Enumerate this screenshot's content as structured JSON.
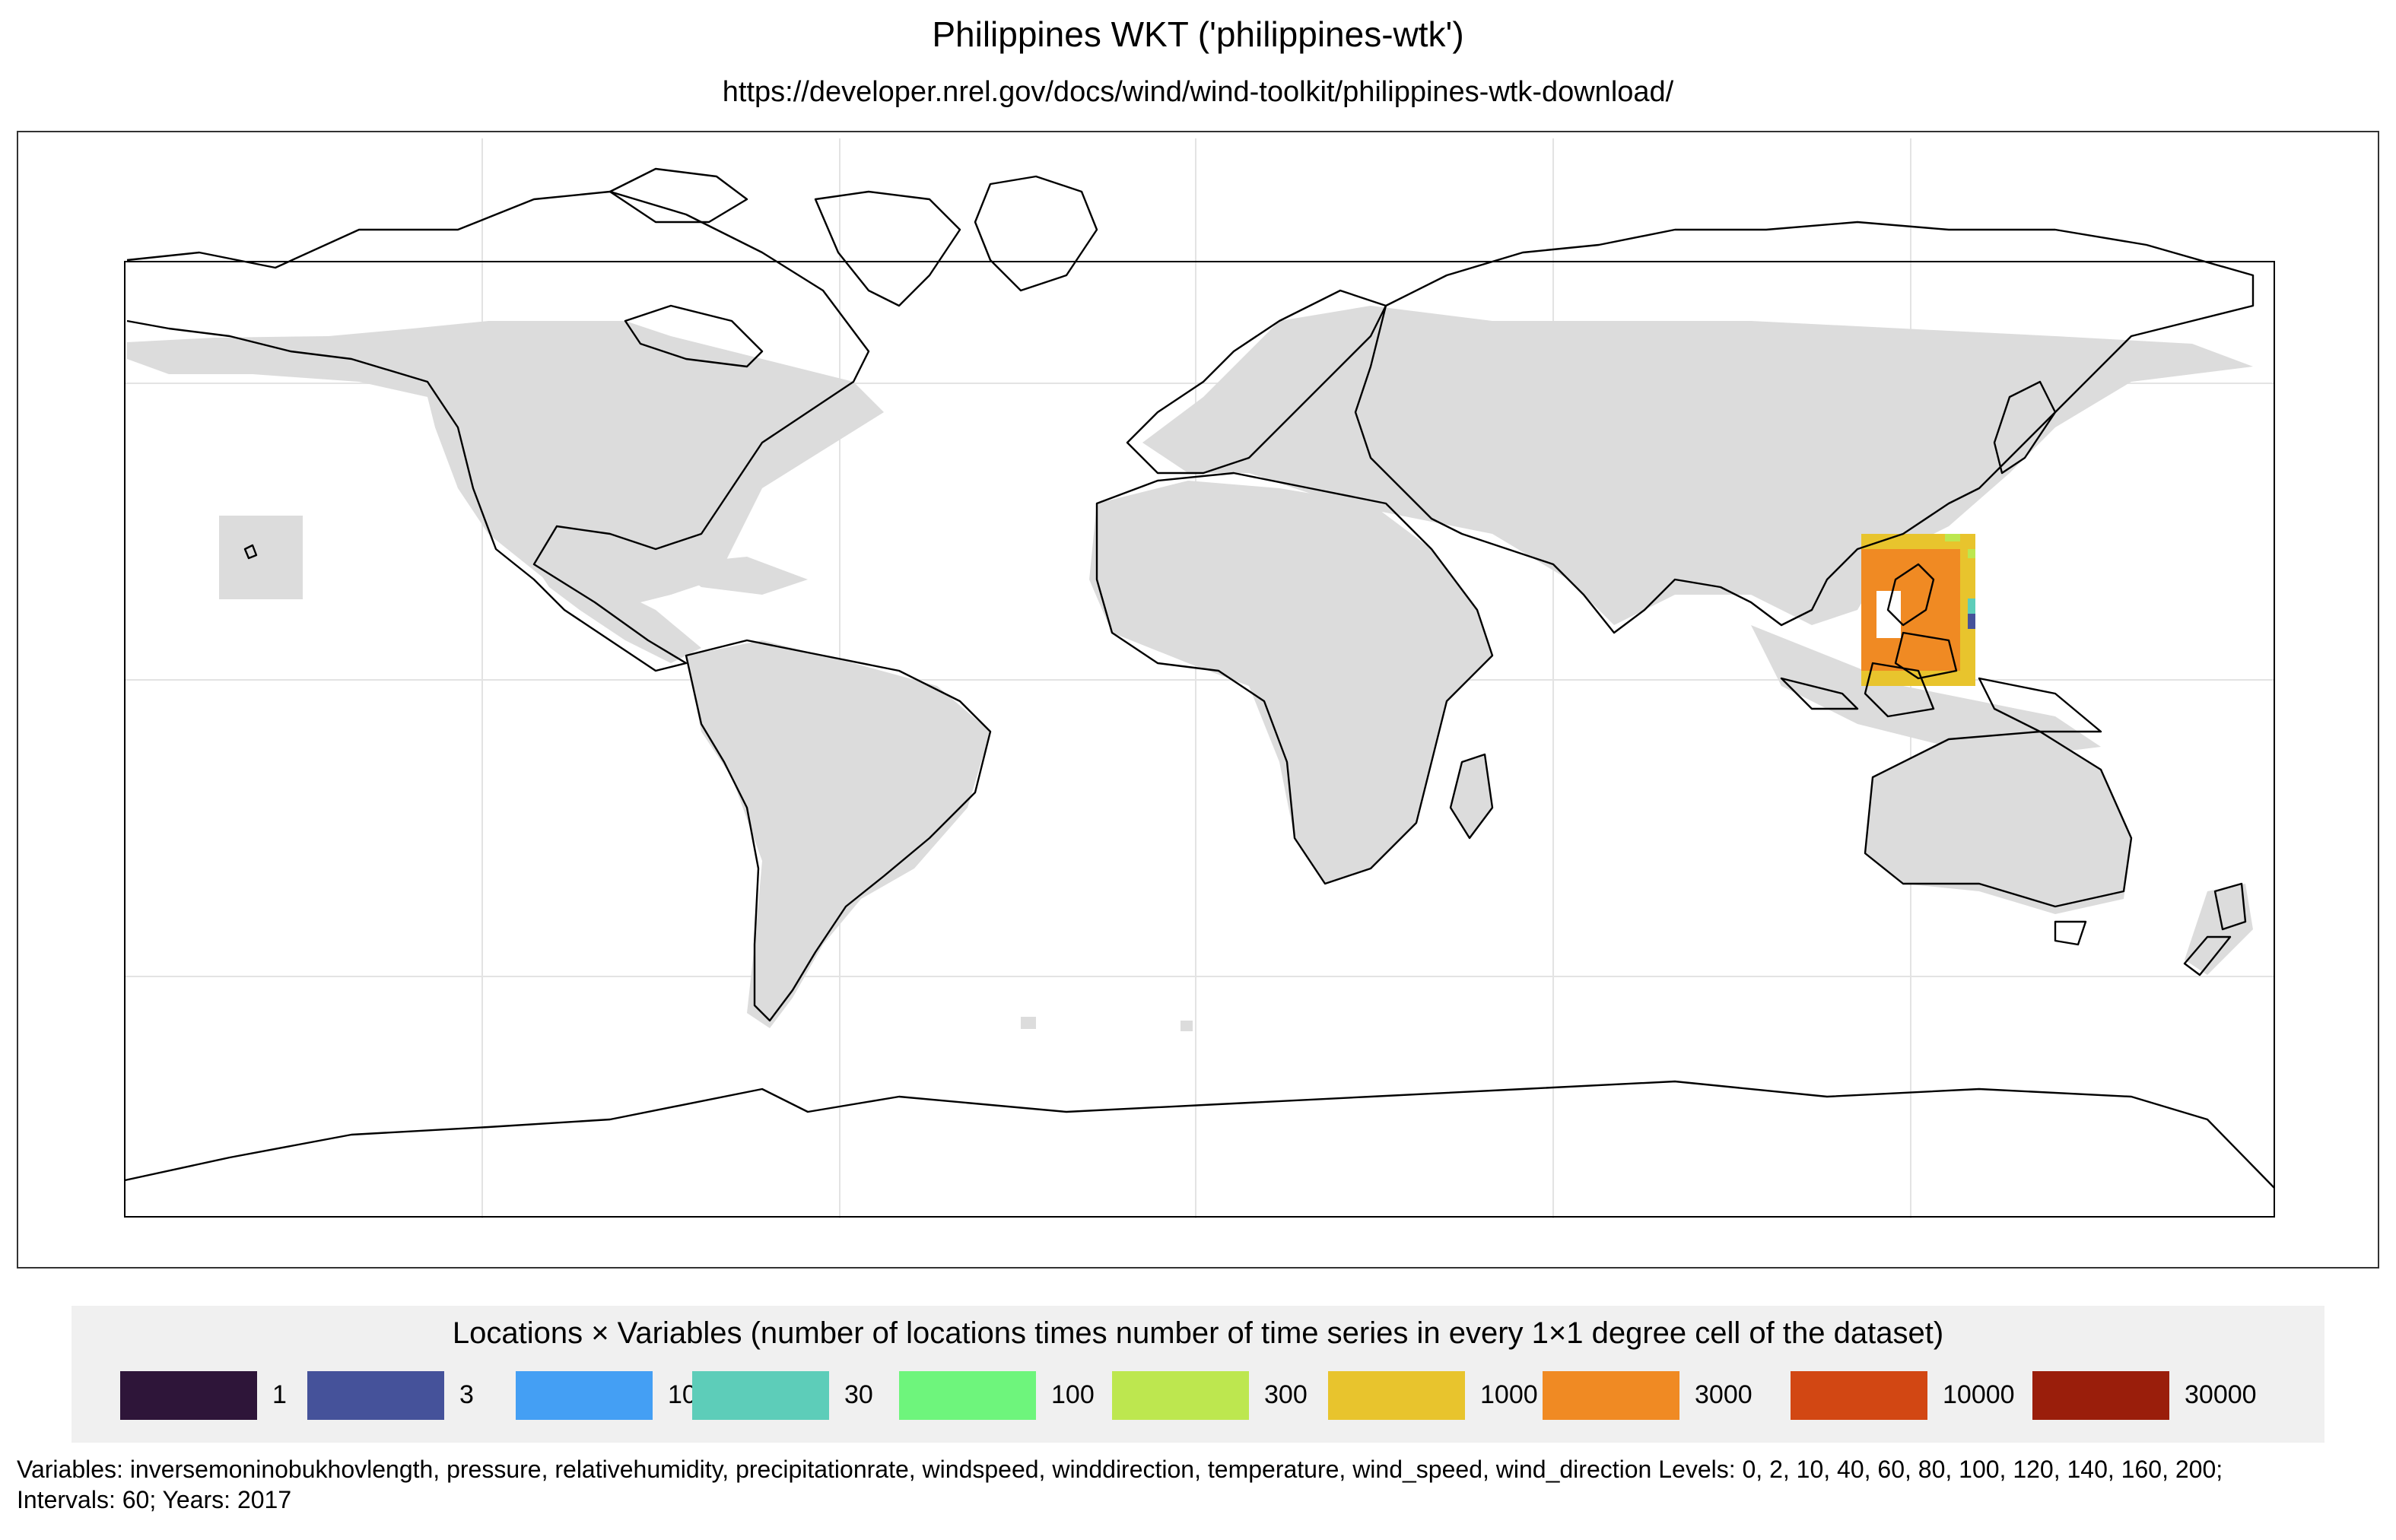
{
  "title": "Philippines WKT ('philippines-wtk')",
  "subtitle": "https://developer.nrel.gov/docs/wind/wind-toolkit/philippines-wtk-download/",
  "legend": {
    "title": "Locations × Variables (number of locations times number of time series in every 1×1 degree cell of the dataset)",
    "items": [
      {
        "label": "1",
        "color": "#2e1539"
      },
      {
        "label": "3",
        "color": "#45529a"
      },
      {
        "label": "10",
        "color": "#449ff4"
      },
      {
        "label": "30",
        "color": "#5dcdb9"
      },
      {
        "label": "100",
        "color": "#6ef57c"
      },
      {
        "label": "300",
        "color": "#bde74f"
      },
      {
        "label": "1000",
        "color": "#e8c42d"
      },
      {
        "label": "3000",
        "color": "#f08a23"
      },
      {
        "label": "10000",
        "color": "#d24713"
      },
      {
        "label": "30000",
        "color": "#9a1e0b"
      }
    ]
  },
  "footnote": "Variables: inversemoninobukhovlength, pressure, relativehumidity, precipitationrate, windspeed, winddirection, temperature, wind_speed, wind_direction Levels: 0, 2, 10, 40, 60, 80, 100, 120, 140, 160, 200; Intervals: 60; Years: 2017",
  "map": {
    "background_coverage_color": "#dcdcdc",
    "coastline_color": "#000000",
    "graticule_color": "#e5e5e5",
    "dataset_region": "Philippines",
    "dataset_cell_value_bin": "3000"
  }
}
